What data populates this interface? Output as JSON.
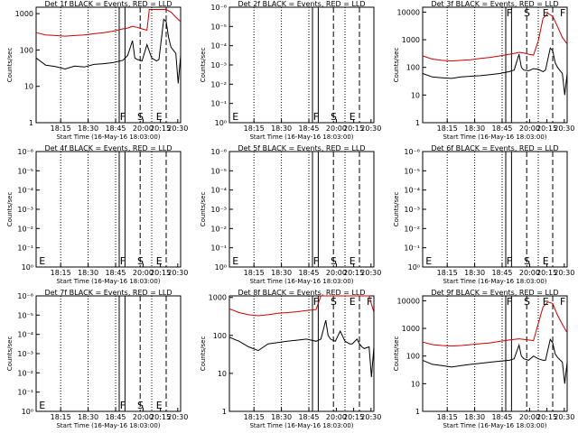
{
  "chart_data": [
    {
      "type": "line",
      "title": "Det 1f BLACK = Events, RED = LLD",
      "xlabel": "Start Time (16-May-16 18:03:00)",
      "ylabel": "Counts/sec",
      "yscale": "log",
      "x_ticks": [
        "18:15",
        "18:30",
        "18:45",
        "20:00",
        "20:15",
        "20:30"
      ],
      "y_ticks": [
        "1",
        "10",
        "100",
        "1000"
      ],
      "ylim": [
        1,
        1500
      ],
      "markers": [
        "F",
        "S",
        "E"
      ],
      "has_data": true,
      "series": [
        {
          "color": "#000000",
          "x": [
            0,
            4,
            8,
            12,
            16,
            20,
            24,
            28,
            32,
            36,
            38,
            40,
            41,
            42,
            44,
            46,
            48,
            50,
            51,
            53,
            54,
            55,
            56,
            58,
            59,
            60
          ],
          "y": [
            60,
            38,
            35,
            30,
            36,
            34,
            40,
            42,
            45,
            52,
            70,
            180,
            60,
            55,
            50,
            140,
            60,
            50,
            55,
            700,
            600,
            220,
            120,
            80,
            12,
            70
          ]
        },
        {
          "color": "#cc0000",
          "x": [
            0,
            4,
            8,
            12,
            16,
            20,
            24,
            28,
            32,
            36,
            38,
            40,
            42,
            44,
            46,
            47,
            48,
            50,
            52,
            54,
            56,
            58,
            60
          ],
          "y": [
            300,
            260,
            250,
            240,
            250,
            260,
            280,
            300,
            330,
            380,
            400,
            450,
            420,
            380,
            350,
            1300,
            1300,
            1300,
            1300,
            1300,
            1100,
            800,
            600
          ]
        }
      ]
    },
    {
      "type": "line",
      "title": "Det 2f BLACK = Events, RED = LLD",
      "xlabel": "Start Time (16-May-16 18:03:00)",
      "ylabel": "Counts/sec",
      "yscale": "log",
      "x_ticks": [
        "18:15",
        "18:30",
        "18:45",
        "20:00",
        "20:15",
        "20:30"
      ],
      "y_ticks": [
        "10⁰",
        "10⁻¹",
        "10⁻²",
        "10⁻³",
        "10⁻⁴",
        "10⁻⁵",
        "10⁻⁶"
      ],
      "markers": [
        "E",
        "F",
        "S",
        "E"
      ],
      "has_data": false,
      "series": []
    },
    {
      "type": "line",
      "title": "Det 3f BLACK = Events, RED = LLD",
      "xlabel": "Start Time (16-May-16 18:03:00)",
      "ylabel": "Counts/sec",
      "yscale": "log",
      "x_ticks": [
        "18:15",
        "18:30",
        "18:45",
        "20:00",
        "20:15",
        "20:30"
      ],
      "y_ticks": [
        "1",
        "10",
        "100",
        "1000",
        "10000"
      ],
      "ylim": [
        1,
        15000
      ],
      "markers": [
        "F",
        "S",
        "E",
        "F"
      ],
      "has_data": true,
      "series": [
        {
          "color": "#000000",
          "x": [
            0,
            4,
            8,
            12,
            16,
            20,
            24,
            28,
            32,
            36,
            38,
            40,
            41,
            42,
            44,
            46,
            48,
            50,
            51,
            53,
            54,
            55,
            56,
            58,
            59,
            60
          ],
          "y": [
            60,
            45,
            42,
            40,
            45,
            48,
            50,
            55,
            60,
            70,
            80,
            300,
            100,
            80,
            75,
            90,
            85,
            70,
            80,
            500,
            400,
            150,
            100,
            60,
            10,
            60
          ]
        },
        {
          "color": "#cc0000",
          "x": [
            0,
            4,
            8,
            12,
            16,
            20,
            24,
            28,
            32,
            36,
            38,
            40,
            42,
            44,
            46,
            48,
            50,
            52,
            54,
            56,
            58,
            60
          ],
          "y": [
            260,
            200,
            180,
            170,
            180,
            190,
            210,
            230,
            260,
            300,
            320,
            350,
            330,
            300,
            280,
            900,
            6000,
            9000,
            7000,
            3000,
            1200,
            700
          ]
        }
      ]
    },
    {
      "type": "line",
      "title": "Det 4f BLACK = Events, RED = LLD",
      "xlabel": "Start Time (16-May-16 18:03:00)",
      "ylabel": "Counts/sec",
      "yscale": "log",
      "x_ticks": [
        "18:15",
        "18:30",
        "18:45",
        "20:00",
        "20:15",
        "20:30"
      ],
      "y_ticks": [
        "10⁰",
        "10⁻¹",
        "10⁻²",
        "10⁻³",
        "10⁻⁴",
        "10⁻⁵",
        "10⁻⁶"
      ],
      "markers": [
        "E",
        "F",
        "S",
        "E"
      ],
      "has_data": false,
      "series": []
    },
    {
      "type": "line",
      "title": "Det 5f BLACK = Events, RED = LLD",
      "xlabel": "Start Time (16-May-16 18:03:00)",
      "ylabel": "Counts/sec",
      "yscale": "log",
      "x_ticks": [
        "18:15",
        "18:30",
        "18:45",
        "20:00",
        "20:15",
        "20:30"
      ],
      "y_ticks": [
        "10⁰",
        "10⁻¹",
        "10⁻²",
        "10⁻³",
        "10⁻⁴",
        "10⁻⁵",
        "10⁻⁶"
      ],
      "markers": [
        "E",
        "F",
        "S",
        "E"
      ],
      "has_data": false,
      "series": []
    },
    {
      "type": "line",
      "title": "Det 6f BLACK = Events, RED = LLD",
      "xlabel": "Start Time (16-May-16 18:03:00)",
      "ylabel": "Counts/sec",
      "yscale": "log",
      "x_ticks": [
        "18:15",
        "18:30",
        "18:45",
        "20:00",
        "20:15",
        "20:30"
      ],
      "y_ticks": [
        "10⁰",
        "10⁻¹",
        "10⁻²",
        "10⁻³",
        "10⁻⁴",
        "10⁻⁵",
        "10⁻⁶"
      ],
      "markers": [
        "E",
        "F",
        "S",
        "E"
      ],
      "has_data": false,
      "series": []
    },
    {
      "type": "line",
      "title": "Det 7f BLACK = Events, RED = LLD",
      "xlabel": "Start Time (16-May-16 18:03:00)",
      "ylabel": "Counts/sec",
      "yscale": "log",
      "x_ticks": [
        "18:15",
        "18:30",
        "18:45",
        "20:00",
        "20:15",
        "20:30"
      ],
      "y_ticks": [
        "10⁰",
        "10⁻¹",
        "10⁻²",
        "10⁻³",
        "10⁻⁴",
        "10⁻⁵",
        "10⁻⁶"
      ],
      "markers": [
        "E",
        "F",
        "S",
        "E"
      ],
      "has_data": false,
      "series": []
    },
    {
      "type": "line",
      "title": "Det 8f BLACK = Events, RED = LLD",
      "xlabel": "Start Time (16-May-16 18:03:00)",
      "ylabel": "Counts/sec",
      "yscale": "log",
      "x_ticks": [
        "18:15",
        "18:30",
        "18:45",
        "20:00",
        "20:15",
        "20:30"
      ],
      "y_ticks": [
        "1",
        "10",
        "100",
        "1000"
      ],
      "ylim": [
        1,
        1100
      ],
      "markers": [
        "F",
        "S",
        "E",
        "F"
      ],
      "has_data": true,
      "series": [
        {
          "color": "#000000",
          "x": [
            0,
            4,
            8,
            12,
            16,
            20,
            24,
            28,
            32,
            36,
            38,
            40,
            41,
            42,
            44,
            46,
            48,
            50,
            51,
            53,
            54,
            55,
            56,
            58,
            59,
            60
          ],
          "y": [
            90,
            70,
            50,
            40,
            60,
            65,
            70,
            75,
            80,
            70,
            80,
            250,
            100,
            80,
            70,
            130,
            70,
            60,
            60,
            80,
            60,
            50,
            45,
            50,
            8,
            50
          ]
        },
        {
          "color": "#cc0000",
          "x": [
            0,
            4,
            8,
            12,
            16,
            20,
            24,
            28,
            32,
            36,
            38,
            40,
            42,
            44,
            46,
            48,
            50,
            52,
            54,
            56,
            58,
            60
          ],
          "y": [
            500,
            400,
            350,
            330,
            350,
            380,
            400,
            420,
            450,
            480,
            1100,
            1100,
            1100,
            1100,
            1100,
            1100,
            1100,
            1100,
            1100,
            1100,
            1100,
            400
          ]
        }
      ]
    },
    {
      "type": "line",
      "title": "Det 9f BLACK = Events, RED = LLD",
      "xlabel": "Start Time (16-May-16 18:03:00)",
      "ylabel": "Counts/sec",
      "yscale": "log",
      "x_ticks": [
        "18:15",
        "18:30",
        "18:45",
        "20:00",
        "20:15",
        "20:30"
      ],
      "y_ticks": [
        "1",
        "10",
        "100",
        "1000",
        "10000"
      ],
      "ylim": [
        1,
        15000
      ],
      "markers": [
        "F",
        "S",
        "E",
        "F"
      ],
      "has_data": true,
      "series": [
        {
          "color": "#000000",
          "x": [
            0,
            4,
            8,
            12,
            16,
            20,
            24,
            28,
            32,
            36,
            38,
            40,
            41,
            42,
            44,
            46,
            48,
            50,
            51,
            53,
            54,
            55,
            56,
            58,
            59,
            60
          ],
          "y": [
            70,
            50,
            45,
            40,
            45,
            50,
            55,
            60,
            65,
            70,
            80,
            250,
            100,
            80,
            70,
            100,
            80,
            70,
            70,
            400,
            300,
            120,
            90,
            60,
            10,
            60
          ]
        },
        {
          "color": "#cc0000",
          "x": [
            0,
            4,
            8,
            12,
            16,
            20,
            24,
            28,
            32,
            36,
            38,
            40,
            42,
            44,
            46,
            48,
            50,
            52,
            54,
            56,
            58,
            60
          ],
          "y": [
            320,
            260,
            240,
            230,
            240,
            260,
            280,
            300,
            340,
            380,
            400,
            420,
            400,
            380,
            360,
            1500,
            6000,
            9000,
            8000,
            3000,
            1400,
            700
          ]
        }
      ]
    }
  ]
}
